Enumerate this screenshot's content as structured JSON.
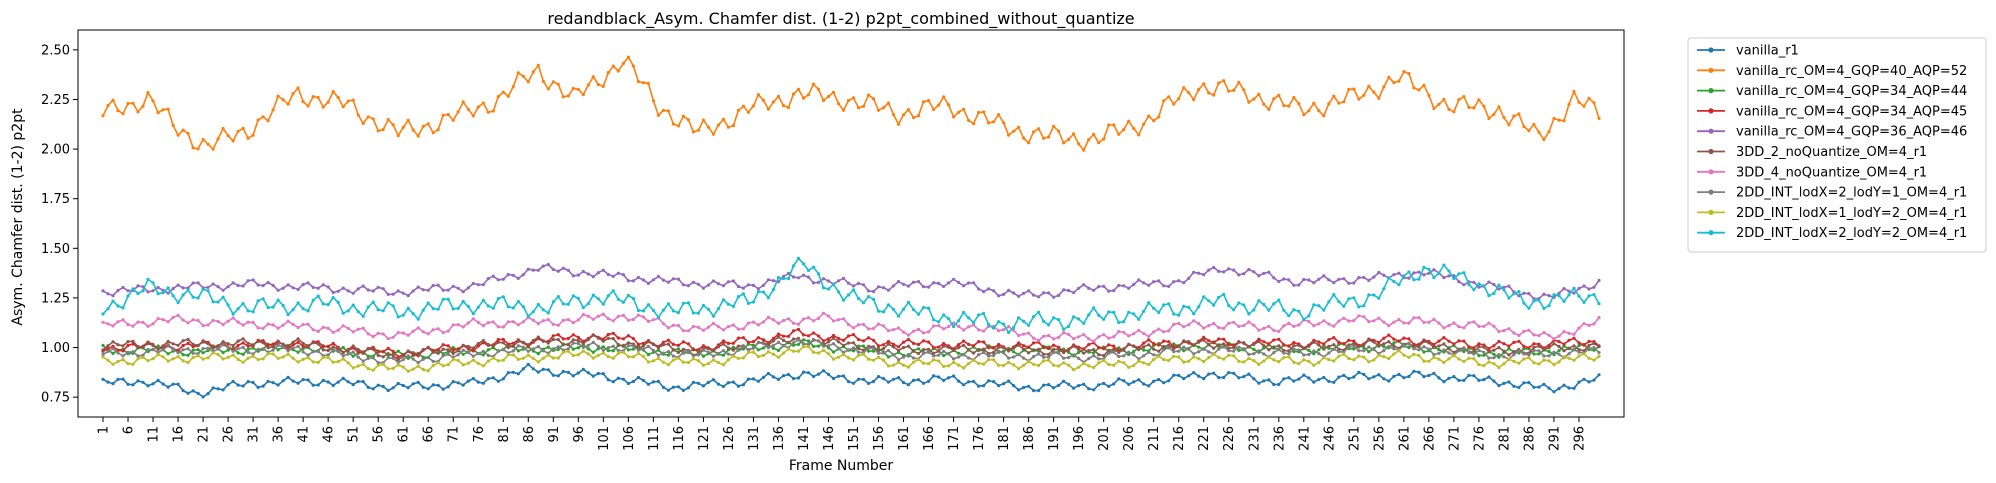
{
  "chart_data": {
    "type": "line",
    "title": "redandblack_Asym. Chamfer dist. (1-2) p2pt_combined_without_quantize",
    "xlabel": "Frame Number",
    "ylabel": "Asym. Chamfer dist. (1-2) p2pt",
    "ylim": [
      0.65,
      2.6
    ],
    "xlim": [
      -4,
      305
    ],
    "grid": false,
    "legend_placement": "outside-upper-right",
    "x_tick_labels": [
      "1",
      "6",
      "11",
      "16",
      "21",
      "26",
      "31",
      "36",
      "41",
      "46",
      "51",
      "56",
      "61",
      "66",
      "71",
      "76",
      "81",
      "86",
      "91",
      "96",
      "101",
      "106",
      "111",
      "116",
      "121",
      "126",
      "131",
      "136",
      "141",
      "146",
      "151",
      "156",
      "161",
      "166",
      "171",
      "176",
      "181",
      "186",
      "191",
      "196",
      "201",
      "206",
      "211",
      "216",
      "221",
      "226",
      "231",
      "236",
      "241",
      "246",
      "251",
      "256",
      "261",
      "266",
      "271",
      "276",
      "281",
      "286",
      "291",
      "296"
    ],
    "y_ticks": [
      0.75,
      1.0,
      1.25,
      1.5,
      1.75,
      2.0,
      2.25,
      2.5
    ],
    "y_tick_labels": [
      "0.75",
      "1.00",
      "1.25",
      "1.50",
      "1.75",
      "2.00",
      "2.25",
      "2.50"
    ],
    "x_frames": {
      "start": 1,
      "end": 300
    },
    "series": [
      {
        "name": "vanilla_r1",
        "color": "#1f77b4",
        "anchors": [
          [
            1,
            0.82
          ],
          [
            10,
            0.83
          ],
          [
            20,
            0.77
          ],
          [
            30,
            0.82
          ],
          [
            45,
            0.83
          ],
          [
            60,
            0.8
          ],
          [
            75,
            0.82
          ],
          [
            86,
            0.89
          ],
          [
            100,
            0.86
          ],
          [
            115,
            0.8
          ],
          [
            130,
            0.83
          ],
          [
            141,
            0.87
          ],
          [
            155,
            0.83
          ],
          [
            170,
            0.84
          ],
          [
            185,
            0.8
          ],
          [
            200,
            0.81
          ],
          [
            215,
            0.84
          ],
          [
            222,
            0.87
          ],
          [
            235,
            0.83
          ],
          [
            250,
            0.85
          ],
          [
            265,
            0.86
          ],
          [
            280,
            0.83
          ],
          [
            290,
            0.79
          ],
          [
            300,
            0.84
          ]
        ]
      },
      {
        "name": "vanilla_rc_OM=4_GQP=40_AQP=52",
        "color": "#ff7f0e",
        "anchors": [
          [
            1,
            2.18
          ],
          [
            5,
            2.22
          ],
          [
            10,
            2.25
          ],
          [
            15,
            2.12
          ],
          [
            22,
            2.01
          ],
          [
            30,
            2.1
          ],
          [
            40,
            2.28
          ],
          [
            50,
            2.22
          ],
          [
            60,
            2.08
          ],
          [
            70,
            2.15
          ],
          [
            80,
            2.25
          ],
          [
            88,
            2.4
          ],
          [
            95,
            2.25
          ],
          [
            105,
            2.45
          ],
          [
            112,
            2.22
          ],
          [
            120,
            2.08
          ],
          [
            130,
            2.2
          ],
          [
            140,
            2.28
          ],
          [
            150,
            2.25
          ],
          [
            160,
            2.18
          ],
          [
            170,
            2.22
          ],
          [
            180,
            2.12
          ],
          [
            190,
            2.06
          ],
          [
            200,
            2.05
          ],
          [
            210,
            2.15
          ],
          [
            220,
            2.32
          ],
          [
            230,
            2.28
          ],
          [
            240,
            2.2
          ],
          [
            250,
            2.25
          ],
          [
            260,
            2.36
          ],
          [
            270,
            2.22
          ],
          [
            280,
            2.2
          ],
          [
            288,
            2.06
          ],
          [
            295,
            2.25
          ],
          [
            300,
            2.18
          ]
        ]
      },
      {
        "name": "vanilla_rc_OM=4_GQP=34_AQP=44",
        "color": "#2ca02c",
        "anchors": [
          [
            1,
            0.99
          ],
          [
            20,
            0.98
          ],
          [
            40,
            1.0
          ],
          [
            60,
            0.96
          ],
          [
            80,
            0.99
          ],
          [
            100,
            1.0
          ],
          [
            120,
            0.97
          ],
          [
            140,
            1.02
          ],
          [
            160,
            0.97
          ],
          [
            180,
            0.99
          ],
          [
            200,
            0.98
          ],
          [
            220,
            1.01
          ],
          [
            240,
            0.99
          ],
          [
            260,
            1.01
          ],
          [
            280,
            0.97
          ],
          [
            300,
            1.0
          ]
        ]
      },
      {
        "name": "vanilla_rc_OM=4_GQP=34_AQP=45",
        "color": "#d62728",
        "anchors": [
          [
            1,
            1.0
          ],
          [
            20,
            1.01
          ],
          [
            40,
            1.02
          ],
          [
            60,
            0.97
          ],
          [
            80,
            1.02
          ],
          [
            100,
            1.06
          ],
          [
            120,
            1.0
          ],
          [
            140,
            1.07
          ],
          [
            160,
            1.02
          ],
          [
            180,
            1.01
          ],
          [
            200,
            1.0
          ],
          [
            220,
            1.03
          ],
          [
            240,
            1.02
          ],
          [
            260,
            1.04
          ],
          [
            280,
            1.01
          ],
          [
            300,
            1.03
          ]
        ]
      },
      {
        "name": "vanilla_rc_OM=4_GQP=36_AQP=46",
        "color": "#9467bd",
        "anchors": [
          [
            1,
            1.28
          ],
          [
            15,
            1.3
          ],
          [
            30,
            1.32
          ],
          [
            45,
            1.3
          ],
          [
            60,
            1.28
          ],
          [
            75,
            1.31
          ],
          [
            88,
            1.4
          ],
          [
            100,
            1.37
          ],
          [
            115,
            1.33
          ],
          [
            130,
            1.31
          ],
          [
            140,
            1.36
          ],
          [
            155,
            1.3
          ],
          [
            170,
            1.33
          ],
          [
            185,
            1.26
          ],
          [
            200,
            1.3
          ],
          [
            215,
            1.33
          ],
          [
            225,
            1.4
          ],
          [
            240,
            1.33
          ],
          [
            255,
            1.35
          ],
          [
            265,
            1.38
          ],
          [
            280,
            1.3
          ],
          [
            290,
            1.25
          ],
          [
            300,
            1.33
          ]
        ]
      },
      {
        "name": "3DD_2_noQuantize_OM=4_r1",
        "color": "#8c564b",
        "anchors": [
          [
            1,
            1.01
          ],
          [
            20,
            1.02
          ],
          [
            40,
            1.02
          ],
          [
            60,
            0.96
          ],
          [
            80,
            1.02
          ],
          [
            100,
            1.04
          ],
          [
            120,
            0.98
          ],
          [
            140,
            1.04
          ],
          [
            160,
            0.99
          ],
          [
            180,
            0.99
          ],
          [
            200,
            0.98
          ],
          [
            220,
            1.02
          ],
          [
            240,
            1.0
          ],
          [
            260,
            1.02
          ],
          [
            280,
            0.98
          ],
          [
            300,
            1.01
          ]
        ]
      },
      {
        "name": "3DD_4_noQuantize_OM=4_r1",
        "color": "#e377c2",
        "anchors": [
          [
            1,
            1.11
          ],
          [
            15,
            1.14
          ],
          [
            30,
            1.12
          ],
          [
            45,
            1.1
          ],
          [
            60,
            1.06
          ],
          [
            75,
            1.12
          ],
          [
            90,
            1.13
          ],
          [
            105,
            1.16
          ],
          [
            120,
            1.09
          ],
          [
            135,
            1.13
          ],
          [
            145,
            1.15
          ],
          [
            160,
            1.08
          ],
          [
            175,
            1.11
          ],
          [
            190,
            1.05
          ],
          [
            205,
            1.06
          ],
          [
            220,
            1.12
          ],
          [
            235,
            1.1
          ],
          [
            250,
            1.14
          ],
          [
            265,
            1.13
          ],
          [
            280,
            1.1
          ],
          [
            290,
            1.05
          ],
          [
            300,
            1.13
          ]
        ]
      },
      {
        "name": "2DD_INT_lodX=2_lodY=1_OM=4_r1",
        "color": "#7f7f7f",
        "anchors": [
          [
            1,
            0.97
          ],
          [
            20,
            0.99
          ],
          [
            40,
            0.99
          ],
          [
            60,
            0.93
          ],
          [
            80,
            0.98
          ],
          [
            100,
            1.01
          ],
          [
            120,
            0.96
          ],
          [
            140,
            1.03
          ],
          [
            160,
            0.96
          ],
          [
            180,
            0.96
          ],
          [
            200,
            0.95
          ],
          [
            220,
            0.99
          ],
          [
            240,
            0.97
          ],
          [
            260,
            1.0
          ],
          [
            280,
            0.96
          ],
          [
            300,
            0.98
          ]
        ]
      },
      {
        "name": "2DD_INT_lodX=1_lodY=2_OM=4_r1",
        "color": "#bcbd22",
        "anchors": [
          [
            1,
            0.93
          ],
          [
            20,
            0.95
          ],
          [
            40,
            0.95
          ],
          [
            60,
            0.89
          ],
          [
            80,
            0.94
          ],
          [
            100,
            0.97
          ],
          [
            120,
            0.92
          ],
          [
            140,
            0.99
          ],
          [
            160,
            0.92
          ],
          [
            180,
            0.92
          ],
          [
            200,
            0.91
          ],
          [
            220,
            0.95
          ],
          [
            240,
            0.93
          ],
          [
            260,
            0.96
          ],
          [
            280,
            0.92
          ],
          [
            300,
            0.95
          ]
        ]
      },
      {
        "name": "2DD_INT_lodX=2_lodY=2_OM=4_r1",
        "color": "#17becf",
        "anchors": [
          [
            1,
            1.2
          ],
          [
            10,
            1.3
          ],
          [
            20,
            1.26
          ],
          [
            30,
            1.2
          ],
          [
            45,
            1.22
          ],
          [
            60,
            1.18
          ],
          [
            75,
            1.22
          ],
          [
            90,
            1.2
          ],
          [
            100,
            1.26
          ],
          [
            115,
            1.18
          ],
          [
            130,
            1.23
          ],
          [
            141,
            1.42
          ],
          [
            150,
            1.25
          ],
          [
            165,
            1.17
          ],
          [
            180,
            1.12
          ],
          [
            195,
            1.14
          ],
          [
            210,
            1.18
          ],
          [
            225,
            1.23
          ],
          [
            240,
            1.18
          ],
          [
            255,
            1.26
          ],
          [
            265,
            1.4
          ],
          [
            275,
            1.33
          ],
          [
            285,
            1.23
          ],
          [
            300,
            1.26
          ]
        ]
      }
    ]
  }
}
